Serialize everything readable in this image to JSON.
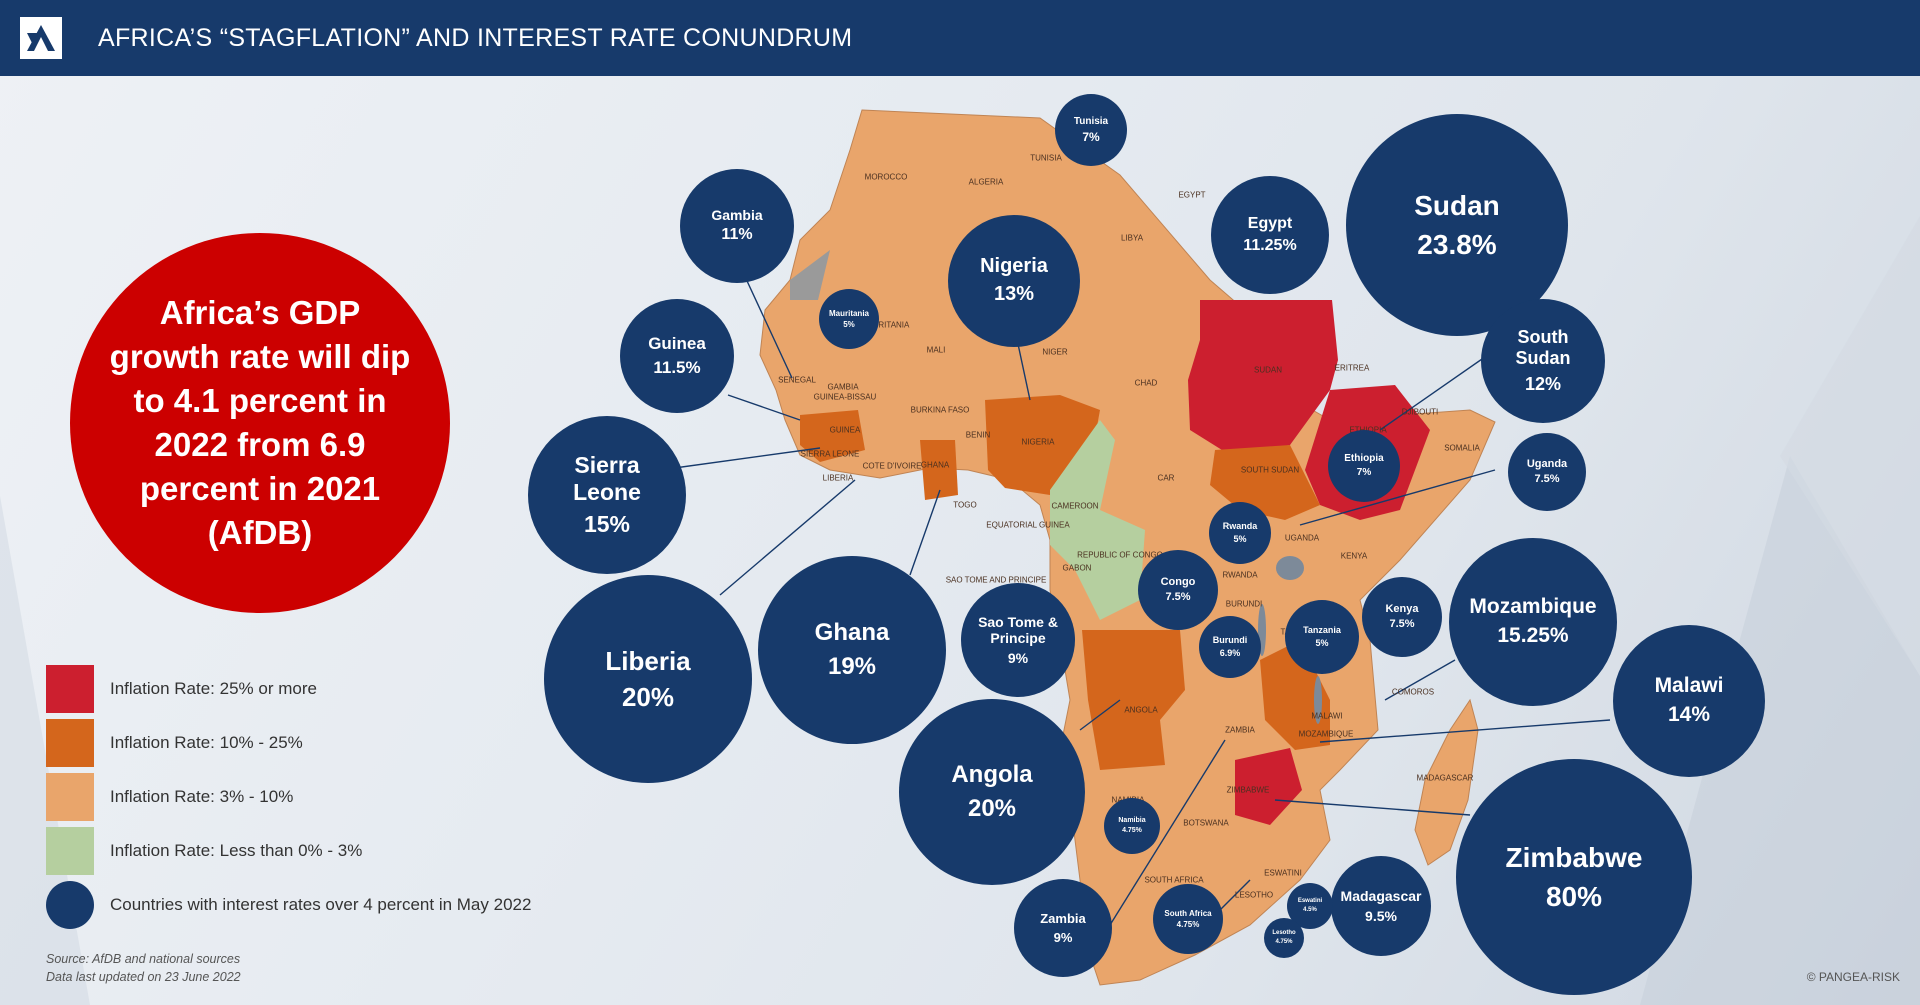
{
  "header": {
    "title": "AFRICA’S “STAGFLATION” AND INTEREST RATE CONUNDRUM"
  },
  "headline": "Africa’s GDP growth rate will dip to 4.1 percent in 2022 from 6.9 percent in 2021 (AfDB)",
  "legend": [
    {
      "label": "Inflation Rate: 25% or more",
      "color": "#cc1f2f"
    },
    {
      "label": "Inflation Rate: 10% - 25%",
      "color": "#d4661c"
    },
    {
      "label": "Inflation Rate: 3% - 10%",
      "color": "#e9a56b"
    },
    {
      "label": "Inflation Rate: Less than 0% - 3%",
      "color": "#b5cf9f"
    },
    {
      "label": "Countries with interest rates over 4 percent in May 2022",
      "color": "#173a6b"
    }
  ],
  "source": {
    "line1": "Source: AfDB and national sources",
    "line2": "Data last updated on 23 June 2022"
  },
  "copyright": "© PANGEA-RISK",
  "colors": {
    "navy": "#173a6b",
    "red": "#cc0000",
    "high": "#cc1f2f",
    "mid": "#d4661c",
    "low": "#e9a56b",
    "green": "#b5cf9f"
  },
  "rates": [
    {
      "country": "Tunisia",
      "rate": "7%"
    },
    {
      "country": "Gambia",
      "rate": "11%"
    },
    {
      "country": "Mauritania",
      "rate": "5%"
    },
    {
      "country": "Nigeria",
      "rate": "13%"
    },
    {
      "country": "Egypt",
      "rate": "11.25%"
    },
    {
      "country": "Sudan",
      "rate": "23.8%"
    },
    {
      "country": "Guinea",
      "rate": "11.5%"
    },
    {
      "country": "South Sudan",
      "rate": "12%"
    },
    {
      "country": "Sierra Leone",
      "rate": "15%"
    },
    {
      "country": "Ethiopia",
      "rate": "7%"
    },
    {
      "country": "Uganda",
      "rate": "7.5%"
    },
    {
      "country": "Rwanda",
      "rate": "5%"
    },
    {
      "country": "Liberia",
      "rate": "20%"
    },
    {
      "country": "Ghana",
      "rate": "19%"
    },
    {
      "country": "Congo",
      "rate": "7.5%"
    },
    {
      "country": "Sao Tome & Principe",
      "rate": "9%"
    },
    {
      "country": "Kenya",
      "rate": "7.5%"
    },
    {
      "country": "Mozambique",
      "rate": "15.25%"
    },
    {
      "country": "Burundi",
      "rate": "6.9%"
    },
    {
      "country": "Tanzania",
      "rate": "5%"
    },
    {
      "country": "Malawi",
      "rate": "14%"
    },
    {
      "country": "Angola",
      "rate": "20%"
    },
    {
      "country": "Namibia",
      "rate": "4.75%"
    },
    {
      "country": "Zimbabwe",
      "rate": "80%"
    },
    {
      "country": "Madagascar",
      "rate": "9.5%"
    },
    {
      "country": "Zambia",
      "rate": "9%"
    },
    {
      "country": "South Africa",
      "rate": "4.75%"
    },
    {
      "country": "Eswatini",
      "rate": "4.5%"
    },
    {
      "country": "Lesotho",
      "rate": "4.75%"
    }
  ],
  "map_labels": [
    "MOROCCO",
    "ALGERIA",
    "TUNISIA",
    "LIBYA",
    "EGYPT",
    "MAURITANIA",
    "MALI",
    "NIGER",
    "CHAD",
    "SUDAN",
    "ERITREA",
    "DJIBOUTI",
    "SENEGAL",
    "GAMBIA",
    "GUINEA-BISSAU",
    "GUINEA",
    "SIERRA LEONE",
    "LIBERIA",
    "COTE D'IVOIRE",
    "BURKINA FASO",
    "GHANA",
    "TOGO",
    "BENIN",
    "NIGERIA",
    "CAMEROON",
    "CAR",
    "SOUTH SUDAN",
    "ETHIOPIA",
    "SOMALIA",
    "UGANDA",
    "KENYA",
    "RWANDA",
    "BURUNDI",
    "TANZANIA",
    "GABON",
    "REPUBLIC OF CONGO",
    "EQUATORIAL GUINEA",
    "SAO TOME AND PRINCIPE",
    "ANGOLA",
    "ZAMBIA",
    "MALAWI",
    "MOZAMBIQUE",
    "ZIMBABWE",
    "NAMIBIA",
    "BOTSWANA",
    "SOUTH AFRICA",
    "ESWATINI",
    "LESOTHO",
    "MADAGASCAR",
    "COMOROS"
  ]
}
